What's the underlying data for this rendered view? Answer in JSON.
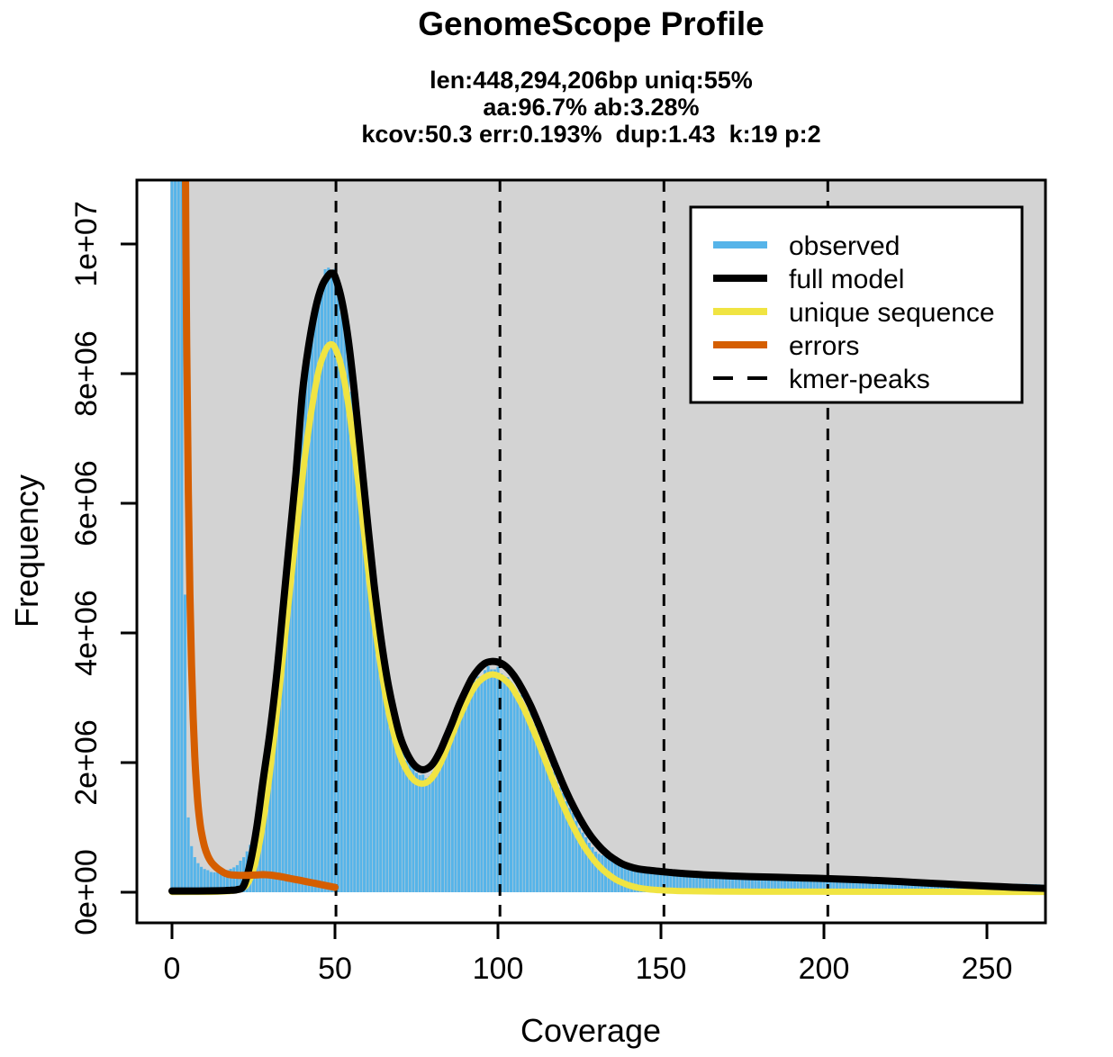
{
  "chart": {
    "title": "GenomeScope Profile",
    "subtitle_lines": [
      "len:448,294,206bp uniq:55%",
      "aa:96.7% ab:3.28%",
      "kcov:50.3 err:0.193%  dup:1.43  k:19 p:2"
    ],
    "stats": {
      "len": "448,294,206bp",
      "uniq": "55%",
      "aa": "96.7%",
      "ab": "3.28%",
      "kcov": "50.3",
      "err": "0.193%",
      "dup": "1.43",
      "k": "19",
      "p": "2"
    }
  },
  "chart_data": {
    "type": "area",
    "title": "GenomeScope Profile",
    "xlabel": "Coverage",
    "ylabel": "Frequency",
    "x_ticks": [
      "0",
      "50",
      "100",
      "150",
      "200",
      "250"
    ],
    "x_tick_values": [
      0,
      50,
      100,
      150,
      200,
      250
    ],
    "y_ticks": [
      {
        "value_millions": 0,
        "label": "0e+00"
      },
      {
        "value_millions": 2,
        "label": "2e+06"
      },
      {
        "value_millions": 4,
        "label": "4e+06"
      },
      {
        "value_millions": 6,
        "label": "6e+06"
      },
      {
        "value_millions": 8,
        "label": "8e+06"
      },
      {
        "value_millions": 10,
        "label": "1e+07"
      }
    ],
    "xlim": [
      0,
      265
    ],
    "ylim_millions": [
      0,
      11
    ],
    "grid": false,
    "panel_background_color": "#D3D3D3",
    "kmer_peaks_coverage": [
      50.3,
      100.6,
      150.9,
      201.2
    ],
    "legend": {
      "position": "top-right",
      "entries": [
        {
          "label": "observed",
          "color": "#56B4E9",
          "style": "solid"
        },
        {
          "label": "full model",
          "color": "#000000",
          "style": "solid"
        },
        {
          "label": "unique sequence",
          "color": "#F0E442",
          "style": "solid"
        },
        {
          "label": "errors",
          "color": "#D55E00",
          "style": "solid"
        },
        {
          "label": "kmer-peaks",
          "color": "#000000",
          "style": "dashed"
        }
      ]
    },
    "series": {
      "observed": {
        "label": "observed",
        "color": "#56B4E9",
        "render": "bars",
        "points_cov_freqM": [
          [
            0,
            60
          ],
          [
            1,
            60
          ],
          [
            2,
            30
          ],
          [
            3,
            15
          ],
          [
            4,
            4.5
          ],
          [
            5,
            1.15
          ],
          [
            6,
            0.72
          ],
          [
            7,
            0.54
          ],
          [
            8,
            0.45
          ],
          [
            9,
            0.4
          ],
          [
            10,
            0.36
          ],
          [
            12,
            0.315
          ],
          [
            14,
            0.3
          ],
          [
            16,
            0.315
          ],
          [
            18,
            0.36
          ],
          [
            20,
            0.42
          ],
          [
            22,
            0.55
          ],
          [
            24,
            0.72
          ],
          [
            26,
            1.0
          ],
          [
            28,
            1.5
          ],
          [
            30,
            2.3
          ],
          [
            32,
            3.3
          ],
          [
            34,
            4.3
          ],
          [
            36,
            5.3
          ],
          [
            38,
            6.4
          ],
          [
            40,
            7.6
          ],
          [
            42,
            8.4
          ],
          [
            44,
            9.0
          ],
          [
            46,
            9.4
          ],
          [
            48,
            9.62
          ],
          [
            49,
            9.63
          ],
          [
            50,
            9.45
          ],
          [
            52,
            9.0
          ],
          [
            54,
            8.3
          ],
          [
            56,
            7.4
          ],
          [
            58,
            6.4
          ],
          [
            60,
            5.5
          ],
          [
            62,
            4.6
          ],
          [
            64,
            3.85
          ],
          [
            66,
            3.2
          ],
          [
            68,
            2.7
          ],
          [
            70,
            2.3
          ],
          [
            72,
            2.05
          ],
          [
            74,
            1.9
          ],
          [
            76,
            1.8
          ],
          [
            78,
            1.78
          ],
          [
            80,
            1.85
          ],
          [
            82,
            2.0
          ],
          [
            84,
            2.25
          ],
          [
            86,
            2.5
          ],
          [
            88,
            2.8
          ],
          [
            90,
            3.0
          ],
          [
            92,
            3.2
          ],
          [
            94,
            3.32
          ],
          [
            96,
            3.4
          ],
          [
            98,
            3.44
          ],
          [
            100,
            3.42
          ],
          [
            102,
            3.36
          ],
          [
            104,
            3.26
          ],
          [
            106,
            3.1
          ],
          [
            108,
            2.92
          ],
          [
            110,
            2.7
          ],
          [
            112,
            2.47
          ],
          [
            114,
            2.22
          ],
          [
            116,
            1.97
          ],
          [
            118,
            1.73
          ],
          [
            120,
            1.5
          ],
          [
            122,
            1.3
          ],
          [
            124,
            1.1
          ],
          [
            126,
            0.92
          ],
          [
            128,
            0.78
          ],
          [
            130,
            0.62
          ],
          [
            134,
            0.52
          ],
          [
            138,
            0.46
          ],
          [
            142,
            0.4
          ],
          [
            146,
            0.37
          ],
          [
            150,
            0.34
          ],
          [
            155,
            0.31
          ],
          [
            160,
            0.29
          ],
          [
            166,
            0.27
          ],
          [
            172,
            0.255
          ],
          [
            180,
            0.24
          ],
          [
            190,
            0.23
          ],
          [
            200,
            0.22
          ],
          [
            210,
            0.205
          ],
          [
            220,
            0.19
          ],
          [
            230,
            0.175
          ],
          [
            240,
            0.155
          ],
          [
            250,
            0.14
          ],
          [
            260,
            0.13
          ],
          [
            267,
            0.12
          ]
        ]
      },
      "full_model": {
        "label": "full model",
        "color": "#000000",
        "render": "line",
        "points_cov_freqM": [
          [
            0,
            0.02
          ],
          [
            8,
            0.02
          ],
          [
            14,
            0.022
          ],
          [
            18,
            0.03
          ],
          [
            20,
            0.04
          ],
          [
            22,
            0.1
          ],
          [
            24,
            0.45
          ],
          [
            26,
            1.0
          ],
          [
            28,
            1.75
          ],
          [
            30,
            2.45
          ],
          [
            32,
            3.3
          ],
          [
            34,
            4.35
          ],
          [
            36,
            5.4
          ],
          [
            38,
            6.45
          ],
          [
            40,
            7.7
          ],
          [
            42,
            8.45
          ],
          [
            44,
            9.0
          ],
          [
            46,
            9.35
          ],
          [
            48,
            9.52
          ],
          [
            49,
            9.55
          ],
          [
            50,
            9.5
          ],
          [
            52,
            9.15
          ],
          [
            54,
            8.55
          ],
          [
            56,
            7.7
          ],
          [
            58,
            6.7
          ],
          [
            60,
            5.7
          ],
          [
            62,
            4.75
          ],
          [
            64,
            3.95
          ],
          [
            66,
            3.3
          ],
          [
            68,
            2.8
          ],
          [
            70,
            2.4
          ],
          [
            72,
            2.15
          ],
          [
            74,
            1.98
          ],
          [
            76,
            1.9
          ],
          [
            78,
            1.9
          ],
          [
            80,
            1.98
          ],
          [
            82,
            2.15
          ],
          [
            84,
            2.38
          ],
          [
            86,
            2.62
          ],
          [
            88,
            2.88
          ],
          [
            90,
            3.1
          ],
          [
            92,
            3.3
          ],
          [
            94,
            3.44
          ],
          [
            96,
            3.53
          ],
          [
            98,
            3.56
          ],
          [
            100,
            3.55
          ],
          [
            102,
            3.5
          ],
          [
            104,
            3.4
          ],
          [
            106,
            3.26
          ],
          [
            108,
            3.08
          ],
          [
            110,
            2.88
          ],
          [
            112,
            2.65
          ],
          [
            114,
            2.4
          ],
          [
            116,
            2.15
          ],
          [
            118,
            1.9
          ],
          [
            120,
            1.66
          ],
          [
            122,
            1.44
          ],
          [
            124,
            1.24
          ],
          [
            126,
            1.06
          ],
          [
            128,
            0.9
          ],
          [
            130,
            0.77
          ],
          [
            132,
            0.66
          ],
          [
            134,
            0.57
          ],
          [
            136,
            0.5
          ],
          [
            138,
            0.44
          ],
          [
            140,
            0.4
          ],
          [
            143,
            0.36
          ],
          [
            146,
            0.34
          ],
          [
            150,
            0.32
          ],
          [
            154,
            0.3
          ],
          [
            158,
            0.285
          ],
          [
            163,
            0.27
          ],
          [
            168,
            0.258
          ],
          [
            174,
            0.247
          ],
          [
            180,
            0.238
          ],
          [
            186,
            0.23
          ],
          [
            192,
            0.222
          ],
          [
            198,
            0.215
          ],
          [
            204,
            0.206
          ],
          [
            210,
            0.195
          ],
          [
            216,
            0.182
          ],
          [
            222,
            0.168
          ],
          [
            228,
            0.152
          ],
          [
            234,
            0.136
          ],
          [
            240,
            0.12
          ],
          [
            246,
            0.104
          ],
          [
            252,
            0.09
          ],
          [
            258,
            0.077
          ],
          [
            263,
            0.068
          ],
          [
            268,
            0.06
          ]
        ]
      },
      "unique_sequence": {
        "label": "unique sequence",
        "color": "#F0E442",
        "render": "line",
        "points_cov_freqM": [
          [
            0,
            0.004
          ],
          [
            12,
            0.006
          ],
          [
            16,
            0.012
          ],
          [
            19,
            0.025
          ],
          [
            21,
            0.05
          ],
          [
            23,
            0.12
          ],
          [
            25,
            0.35
          ],
          [
            27,
            0.8
          ],
          [
            29,
            1.45
          ],
          [
            31,
            2.25
          ],
          [
            33,
            3.15
          ],
          [
            35,
            4.1
          ],
          [
            37,
            5.05
          ],
          [
            39,
            5.95
          ],
          [
            41,
            6.8
          ],
          [
            43,
            7.5
          ],
          [
            45,
            8.05
          ],
          [
            47,
            8.35
          ],
          [
            48.5,
            8.45
          ],
          [
            50,
            8.4
          ],
          [
            52,
            8.1
          ],
          [
            54,
            7.55
          ],
          [
            56,
            6.8
          ],
          [
            58,
            5.95
          ],
          [
            60,
            5.05
          ],
          [
            62,
            4.2
          ],
          [
            64,
            3.5
          ],
          [
            66,
            2.9
          ],
          [
            68,
            2.45
          ],
          [
            70,
            2.1
          ],
          [
            72,
            1.88
          ],
          [
            74,
            1.74
          ],
          [
            76,
            1.68
          ],
          [
            78,
            1.69
          ],
          [
            80,
            1.78
          ],
          [
            82,
            1.95
          ],
          [
            84,
            2.18
          ],
          [
            86,
            2.43
          ],
          [
            88,
            2.68
          ],
          [
            90,
            2.9
          ],
          [
            92,
            3.1
          ],
          [
            94,
            3.24
          ],
          [
            96,
            3.32
          ],
          [
            98,
            3.36
          ],
          [
            100,
            3.34
          ],
          [
            102,
            3.28
          ],
          [
            104,
            3.18
          ],
          [
            106,
            3.02
          ],
          [
            108,
            2.83
          ],
          [
            110,
            2.6
          ],
          [
            112,
            2.36
          ],
          [
            114,
            2.1
          ],
          [
            116,
            1.84
          ],
          [
            118,
            1.58
          ],
          [
            120,
            1.34
          ],
          [
            122,
            1.12
          ],
          [
            124,
            0.92
          ],
          [
            126,
            0.74
          ],
          [
            128,
            0.59
          ],
          [
            130,
            0.46
          ],
          [
            132,
            0.355
          ],
          [
            134,
            0.27
          ],
          [
            136,
            0.2
          ],
          [
            138,
            0.15
          ],
          [
            140,
            0.11
          ],
          [
            143,
            0.07
          ],
          [
            146,
            0.047
          ],
          [
            150,
            0.03
          ],
          [
            155,
            0.02
          ],
          [
            160,
            0.015
          ],
          [
            168,
            0.011
          ],
          [
            178,
            0.009
          ],
          [
            195,
            0.008
          ],
          [
            220,
            0.007
          ],
          [
            250,
            0.006
          ],
          [
            268,
            0.006
          ]
        ]
      },
      "errors": {
        "label": "errors",
        "color": "#D55E00",
        "render": "line",
        "points_cov_freqM": [
          [
            4.05,
            14
          ],
          [
            4.1,
            11.5
          ],
          [
            4.5,
            8.5
          ],
          [
            5,
            6.2
          ],
          [
            5.5,
            4.6
          ],
          [
            6,
            3.5
          ],
          [
            6.5,
            2.7
          ],
          [
            7,
            2.1
          ],
          [
            7.5,
            1.66
          ],
          [
            8,
            1.33
          ],
          [
            8.5,
            1.1
          ],
          [
            9,
            0.93
          ],
          [
            10,
            0.7
          ],
          [
            11,
            0.56
          ],
          [
            12,
            0.47
          ],
          [
            13,
            0.41
          ],
          [
            14,
            0.365
          ],
          [
            15,
            0.33
          ],
          [
            16,
            0.3
          ],
          [
            17,
            0.28
          ],
          [
            18,
            0.27
          ],
          [
            20,
            0.262
          ],
          [
            22,
            0.26
          ],
          [
            24,
            0.262
          ],
          [
            26,
            0.268
          ],
          [
            28,
            0.272
          ],
          [
            30,
            0.265
          ],
          [
            32,
            0.252
          ],
          [
            34,
            0.235
          ],
          [
            36,
            0.215
          ],
          [
            38,
            0.196
          ],
          [
            40,
            0.176
          ],
          [
            42,
            0.156
          ],
          [
            44,
            0.136
          ],
          [
            46,
            0.115
          ],
          [
            48,
            0.095
          ],
          [
            50,
            0.075
          ]
        ]
      }
    }
  }
}
